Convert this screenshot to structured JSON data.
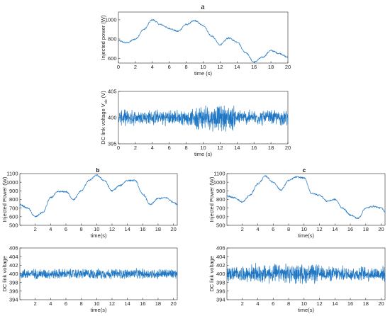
{
  "colors": {
    "series": "#1f77c4",
    "axis": "#262626"
  },
  "panel_titles": {
    "a": "a",
    "b": "b",
    "c": "c"
  },
  "chart_data": [
    {
      "id": "a-power",
      "type": "line",
      "panel": "a",
      "xlabel": "time (s)",
      "ylabel": "Injected power (W)",
      "xlim": [
        0,
        20
      ],
      "ylim": [
        550,
        1080
      ],
      "xticks": [
        0,
        2,
        4,
        6,
        8,
        10,
        12,
        14,
        16,
        18,
        20
      ],
      "yticks": [
        600,
        800,
        1000
      ],
      "grid": false,
      "series": [
        {
          "x": [
            0,
            1,
            2,
            3,
            4,
            5,
            6,
            7,
            8,
            9,
            10,
            11,
            12,
            13,
            14,
            15,
            16,
            17,
            18,
            19,
            20
          ],
          "values": [
            780,
            760,
            800,
            900,
            1000,
            950,
            910,
            880,
            950,
            990,
            940,
            830,
            740,
            810,
            770,
            660,
            560,
            610,
            680,
            650,
            610
          ]
        }
      ]
    },
    {
      "id": "a-vdc",
      "type": "line",
      "panel": "a",
      "xlabel": "time (s)",
      "ylabel": "DC link voltage V_dc (V)",
      "xlim": [
        0,
        20
      ],
      "ylim": [
        395,
        405
      ],
      "xticks": [
        0,
        2,
        4,
        6,
        8,
        10,
        12,
        14,
        16,
        18,
        20
      ],
      "yticks": [
        395,
        400,
        405
      ],
      "grid": false,
      "series": [
        {
          "x": [
            0,
            20
          ],
          "values": [
            400,
            400
          ]
        }
      ]
    },
    {
      "id": "b-power",
      "type": "line",
      "panel": "b",
      "xlabel": "time(s)",
      "ylabel": "Injected Power (W)",
      "xlim": [
        0,
        20.5
      ],
      "ylim": [
        500,
        1100
      ],
      "xticks": [
        2,
        4,
        6,
        8,
        10,
        12,
        14,
        16,
        18,
        20
      ],
      "yticks": [
        500,
        600,
        700,
        800,
        900,
        1000,
        1100
      ],
      "grid": false,
      "series": [
        {
          "x": [
            0,
            1,
            2,
            3,
            4,
            5,
            6,
            7,
            8,
            9,
            10,
            11,
            12,
            13,
            14,
            15,
            16,
            17,
            18,
            19,
            20,
            20.5
          ],
          "values": [
            740,
            700,
            600,
            650,
            820,
            890,
            890,
            800,
            900,
            1020,
            1080,
            1020,
            900,
            960,
            1020,
            1020,
            860,
            740,
            810,
            820,
            770,
            740
          ]
        }
      ]
    },
    {
      "id": "b-vdc",
      "type": "line",
      "panel": "b",
      "xlabel": "time(s)",
      "ylabel": "DC link voltage",
      "xlim": [
        0,
        20.5
      ],
      "ylim": [
        394,
        406
      ],
      "xticks": [
        2,
        4,
        6,
        8,
        10,
        12,
        14,
        16,
        18,
        20
      ],
      "yticks": [
        394,
        396,
        398,
        400,
        402,
        404,
        406
      ],
      "grid": false,
      "series": [
        {
          "x": [
            0,
            20.5
          ],
          "values": [
            400,
            400
          ]
        }
      ]
    },
    {
      "id": "c-power",
      "type": "line",
      "panel": "c",
      "xlabel": "time(s)",
      "ylabel": "Injected Power (W)",
      "xlim": [
        0,
        20.5
      ],
      "ylim": [
        500,
        1100
      ],
      "xticks": [
        2,
        4,
        6,
        8,
        10,
        12,
        14,
        16,
        18,
        20
      ],
      "yticks": [
        500,
        600,
        700,
        800,
        900,
        1000,
        1100
      ],
      "grid": false,
      "series": [
        {
          "x": [
            0,
            1,
            2,
            3,
            4,
            5,
            6,
            7,
            8,
            9,
            10,
            11,
            12,
            13,
            14,
            15,
            16,
            17,
            18,
            19,
            20,
            20.5
          ],
          "values": [
            840,
            820,
            770,
            850,
            980,
            1070,
            1000,
            910,
            1020,
            1060,
            1050,
            870,
            850,
            780,
            800,
            700,
            620,
            580,
            700,
            720,
            700,
            660
          ]
        }
      ]
    },
    {
      "id": "c-vdc",
      "type": "line",
      "panel": "c",
      "xlabel": "time(s)",
      "ylabel": "DC link voltage",
      "xlim": [
        0,
        20.5
      ],
      "ylim": [
        394,
        406
      ],
      "xticks": [
        2,
        4,
        6,
        8,
        10,
        12,
        14,
        16,
        18,
        20
      ],
      "yticks": [
        394,
        396,
        398,
        400,
        402,
        404,
        406
      ],
      "grid": false,
      "series": [
        {
          "x": [
            0,
            20.5
          ],
          "values": [
            400,
            400
          ]
        }
      ]
    }
  ]
}
